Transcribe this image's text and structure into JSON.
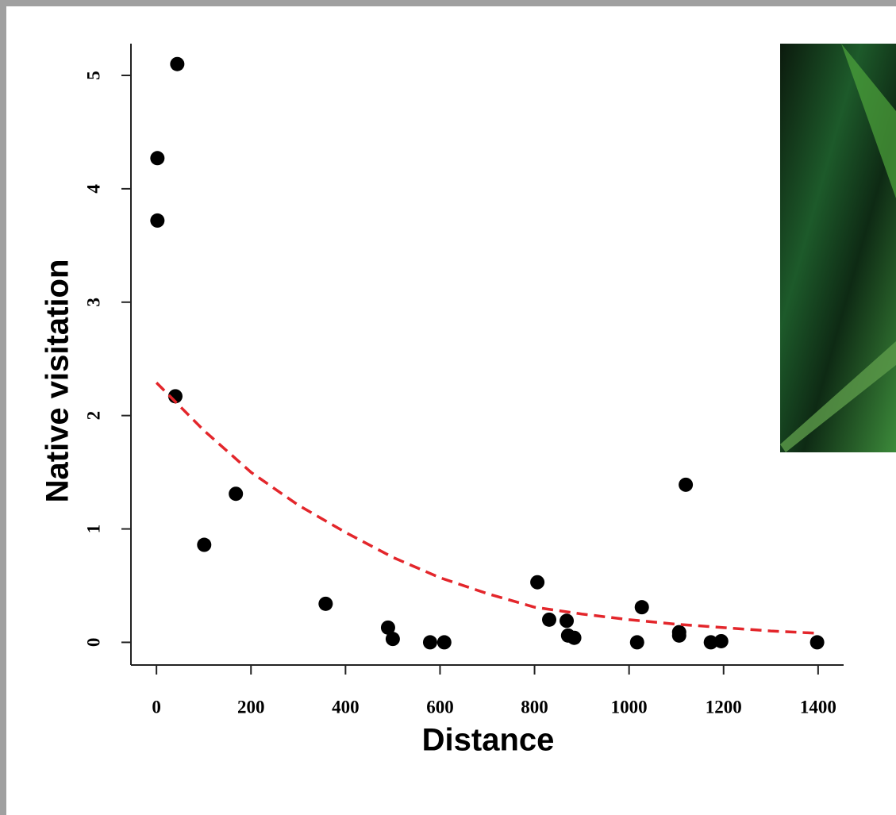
{
  "chart_data": {
    "type": "scatter",
    "xlabel": "Distance",
    "ylabel": "Native visitation",
    "xlim": [
      -54,
      1454
    ],
    "ylim": [
      -0.2,
      5.28
    ],
    "xticks": [
      0,
      200,
      400,
      600,
      800,
      1000,
      1200,
      1400
    ],
    "yticks": [
      0,
      1,
      2,
      3,
      4,
      5
    ],
    "series": [
      {
        "color": "#000000",
        "x": [
          2,
          2,
          44,
          40,
          168,
          101,
          358,
          490,
          500,
          579,
          609,
          806,
          831,
          868,
          871,
          884,
          1017,
          1027,
          1106,
          1106,
          1120,
          1173,
          1195,
          1398
        ],
        "values": [
          4.27,
          3.72,
          5.1,
          2.17,
          1.31,
          0.86,
          0.34,
          0.13,
          0.03,
          0,
          0,
          0.53,
          0.2,
          0.19,
          0.06,
          0.04,
          0,
          0.31,
          0.09,
          0.06,
          1.39,
          0,
          0.01,
          0
        ]
      },
      {
        "type": "line",
        "dashed": true,
        "color": "#e3262b",
        "x": [
          0,
          100,
          200,
          300,
          400,
          500,
          600,
          700,
          800,
          900,
          1000,
          1100,
          1200,
          1300,
          1400
        ],
        "values": [
          2.29,
          1.87,
          1.5,
          1.21,
          0.97,
          0.75,
          0.57,
          0.43,
          0.31,
          0.25,
          0.2,
          0.16,
          0.13,
          0.1,
          0.08
        ]
      }
    ]
  }
}
